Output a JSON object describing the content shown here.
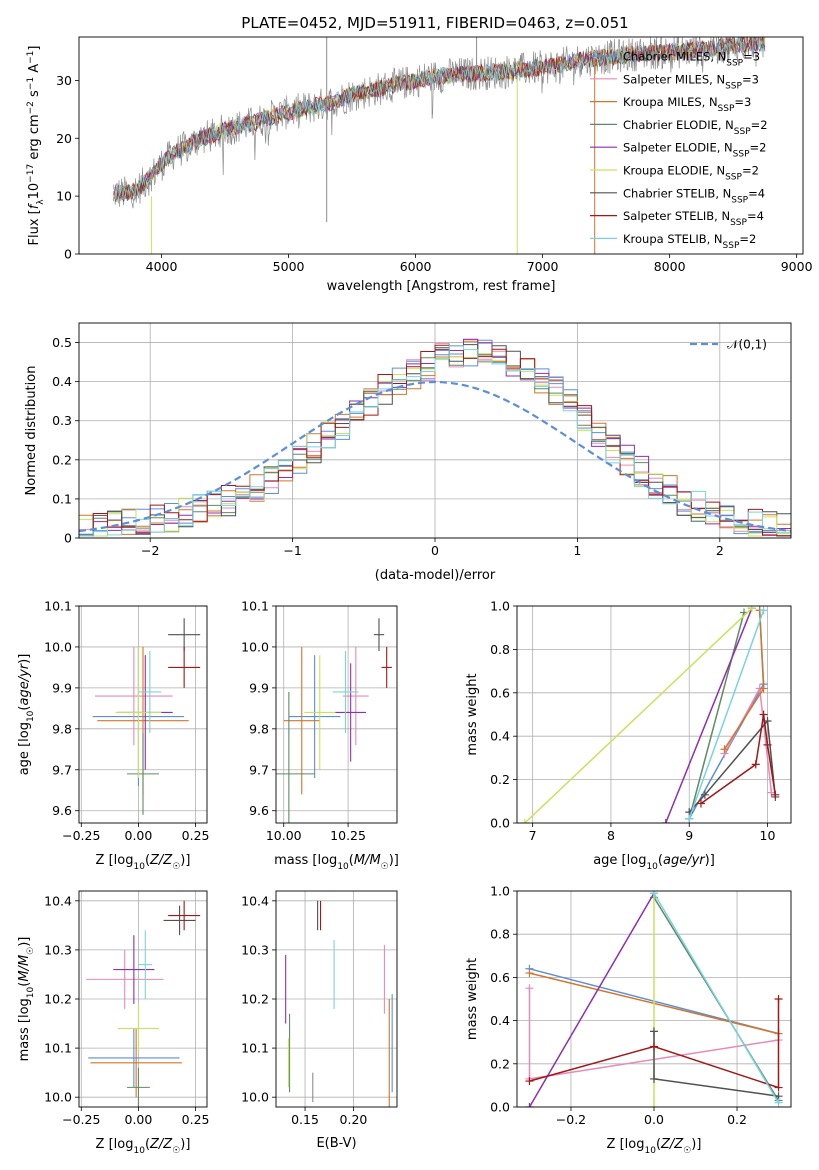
{
  "figure_title": "PLATE=0452, MJD=51911, FIBERID=0463, z=0.051",
  "colors": {
    "chabrier_miles": "#5b8fd9",
    "salpeter_miles": "#e68ab8",
    "kroupa_miles": "#d2762a",
    "chabrier_elodie": "#5f8a63",
    "salpeter_elodie": "#8e2fae",
    "kroupa_elodie": "#c8e35a",
    "chabrier_stelib": "#505050",
    "salpeter_stelib": "#a01818",
    "kroupa_stelib": "#79d3de",
    "model_gauss": "#5b8fd9",
    "data_gray": "#8c8c8c",
    "grid": "#b0b0b0"
  },
  "chart_data": [
    {
      "id": "spectrum",
      "type": "line",
      "xlabel": "wavelength [Angstrom, rest frame]",
      "ylabel": "Flux [f_λ10^-17 erg cm^-2 s^-1 A^-1]",
      "xlim": [
        3350,
        9050
      ],
      "ylim": [
        0,
        37.5
      ],
      "xticks": [
        4000,
        5000,
        6000,
        7000,
        8000,
        9000
      ],
      "yticks": [
        0,
        10,
        20,
        30
      ],
      "grid": false,
      "legend_position": "right",
      "continuum": {
        "x": [
          3620,
          3700,
          3800,
          3900,
          4000,
          4100,
          4200,
          4300,
          4400,
          4500,
          4700,
          4900,
          5100,
          5300,
          5500,
          5700,
          5900,
          6100,
          6300,
          6500,
          6700,
          6900,
          7100,
          7300,
          7500,
          7700,
          7900,
          8100,
          8300,
          8500,
          8700,
          8750
        ],
        "y": [
          10.5,
          10.5,
          11,
          13,
          15.5,
          17.5,
          18.5,
          20,
          20.5,
          21.5,
          22.5,
          24,
          25,
          26,
          27.5,
          28.5,
          29.5,
          30.5,
          31,
          31.2,
          31.5,
          32,
          32.5,
          33.5,
          34,
          34.5,
          34.8,
          35,
          35.5,
          36,
          36.5,
          36.5
        ]
      },
      "spikes": [
        {
          "x": 3920,
          "from": 0,
          "to": 10,
          "series": "Kroupa ELODIE, N_SSP=2"
        },
        {
          "x": 5300,
          "from": 5.5,
          "to": 37.5,
          "series": "data"
        },
        {
          "x": 6800,
          "from": 0,
          "to": 31,
          "series": "Kroupa ELODIE, N_SSP=2"
        },
        {
          "x": 7410,
          "from": 0,
          "to": 33.5,
          "series": "Kroupa MILES, N_SSP=3"
        },
        {
          "x": 6480,
          "from": 31,
          "to": 37.5,
          "series": "data"
        }
      ],
      "legend": [
        {
          "label": "Chabrier MILES, N",
          "sub": "SSP",
          "tail": "=3",
          "color": "#5b8fd9"
        },
        {
          "label": "Salpeter MILES, N",
          "sub": "SSP",
          "tail": "=3",
          "color": "#e68ab8"
        },
        {
          "label": "Kroupa MILES, N",
          "sub": "SSP",
          "tail": "=3",
          "color": "#d2762a"
        },
        {
          "label": "Chabrier ELODIE, N",
          "sub": "SSP",
          "tail": "=2",
          "color": "#5f8a63"
        },
        {
          "label": "Salpeter ELODIE, N",
          "sub": "SSP",
          "tail": "=2",
          "color": "#8e2fae"
        },
        {
          "label": "Kroupa ELODIE, N",
          "sub": "SSP",
          "tail": "=2",
          "color": "#c8e35a"
        },
        {
          "label": "Chabrier STELIB, N",
          "sub": "SSP",
          "tail": "=4",
          "color": "#505050"
        },
        {
          "label": "Salpeter STELIB, N",
          "sub": "SSP",
          "tail": "=4",
          "color": "#a01818"
        },
        {
          "label": "Kroupa STELIB, N",
          "sub": "SSP",
          "tail": "=2",
          "color": "#79d3de"
        }
      ]
    },
    {
      "id": "residuals",
      "type": "histogram",
      "xlabel": "(data-model)/error",
      "ylabel": "Normed distribution",
      "xlim": [
        -2.5,
        2.5
      ],
      "ylim": [
        0,
        0.55
      ],
      "xticks": [
        -2,
        -1,
        0,
        1,
        2
      ],
      "yticks": [
        0.0,
        0.1,
        0.2,
        0.3,
        0.4,
        0.5
      ],
      "grid": true,
      "bin_width": 0.1,
      "bin_start": -2.5,
      "base_heights": [
        0.02,
        0.025,
        0.03,
        0.04,
        0.045,
        0.05,
        0.055,
        0.065,
        0.075,
        0.085,
        0.095,
        0.11,
        0.13,
        0.15,
        0.17,
        0.2,
        0.23,
        0.26,
        0.29,
        0.32,
        0.35,
        0.38,
        0.4,
        0.42,
        0.44,
        0.46,
        0.47,
        0.48,
        0.48,
        0.46,
        0.45,
        0.43,
        0.41,
        0.38,
        0.34,
        0.31,
        0.27,
        0.23,
        0.2,
        0.17,
        0.14,
        0.12,
        0.095,
        0.08,
        0.065,
        0.055,
        0.045,
        0.035,
        0.03,
        0.025
      ],
      "legend": [
        {
          "label": "𝒩(0,1)",
          "color": "#5b8fd9",
          "dash": true
        }
      ],
      "legend_position": "top-right"
    },
    {
      "id": "age_vs_Z",
      "type": "errorbar",
      "xlabel": "Z [log10(Z/Z☉)]",
      "ylabel": "age [log10(age/yr)]",
      "xlim": [
        -0.26,
        0.3
      ],
      "ylim": [
        9.57,
        10.1
      ],
      "xticks": [
        -0.25,
        0.0,
        0.25
      ],
      "xtick_labels": [
        "−0.25",
        "0.00",
        "0.25"
      ],
      "yticks": [
        9.6,
        9.7,
        9.8,
        9.9,
        10.0,
        10.1
      ],
      "ytick_labels": [
        "9.6",
        "9.7",
        "9.8",
        "9.9",
        "10.0",
        "10.1"
      ],
      "grid": true,
      "points": [
        {
          "x": 0.0,
          "y": 9.83,
          "xerr": 0.2,
          "yerr": 0.17,
          "color": "#5b8fd9"
        },
        {
          "x": -0.02,
          "y": 9.88,
          "xerr": 0.17,
          "yerr": 0.12,
          "color": "#e68ab8"
        },
        {
          "x": 0.02,
          "y": 9.82,
          "xerr": 0.2,
          "yerr": 0.18,
          "color": "#d2762a"
        },
        {
          "x": 0.02,
          "y": 9.69,
          "xerr": 0.07,
          "yerr": 0.1,
          "color": "#5f8a63"
        },
        {
          "x": 0.03,
          "y": 9.84,
          "xerr": 0.12,
          "yerr": 0.14,
          "color": "#8e2fae"
        },
        {
          "x": 0.0,
          "y": 9.84,
          "xerr": 0.1,
          "yerr": 0.16,
          "color": "#c8e35a"
        },
        {
          "x": 0.2,
          "y": 10.03,
          "xerr": 0.07,
          "yerr": 0.04,
          "color": "#505050"
        },
        {
          "x": 0.2,
          "y": 9.95,
          "xerr": 0.07,
          "yerr": 0.05,
          "color": "#a01818"
        },
        {
          "x": 0.05,
          "y": 9.89,
          "xerr": 0.05,
          "yerr": 0.1,
          "color": "#79d3de"
        }
      ]
    },
    {
      "id": "age_vs_mass",
      "type": "errorbar",
      "xlabel": "mass [log10(M/M☉)]",
      "ylabel": "",
      "xlim": [
        9.97,
        10.44
      ],
      "ylim": [
        9.57,
        10.1
      ],
      "xticks": [
        10.0,
        10.25
      ],
      "xtick_labels": [
        "10.00",
        "10.25"
      ],
      "yticks": [
        9.6,
        9.7,
        9.8,
        9.9,
        10.0,
        10.1
      ],
      "ytick_labels": [
        "9.6",
        "9.7",
        "9.8",
        "9.9",
        "10.0",
        "10.1"
      ],
      "grid": true,
      "points": [
        {
          "x": 10.12,
          "y": 9.83,
          "xerr": 0.1,
          "yerr": 0.15,
          "color": "#5b8fd9"
        },
        {
          "x": 10.28,
          "y": 9.88,
          "xerr": 0.05,
          "yerr": 0.12,
          "color": "#e68ab8"
        },
        {
          "x": 10.07,
          "y": 9.82,
          "xerr": 0.07,
          "yerr": 0.18,
          "color": "#d2762a"
        },
        {
          "x": 10.02,
          "y": 9.69,
          "xerr": 0.1,
          "yerr": 0.2,
          "color": "#5f8a63"
        },
        {
          "x": 10.26,
          "y": 9.84,
          "xerr": 0.06,
          "yerr": 0.12,
          "color": "#8e2fae"
        },
        {
          "x": 10.14,
          "y": 9.84,
          "xerr": 0.06,
          "yerr": 0.14,
          "color": "#c8e35a"
        },
        {
          "x": 10.37,
          "y": 10.03,
          "xerr": 0.02,
          "yerr": 0.04,
          "color": "#505050"
        },
        {
          "x": 10.4,
          "y": 9.95,
          "xerr": 0.02,
          "yerr": 0.05,
          "color": "#a01818"
        },
        {
          "x": 10.24,
          "y": 9.89,
          "xerr": 0.05,
          "yerr": 0.1,
          "color": "#79d3de"
        }
      ]
    },
    {
      "id": "weight_vs_age",
      "type": "line",
      "xlabel": "age [log10(age/yr)]",
      "ylabel": "mass weight",
      "xlim": [
        6.8,
        10.3
      ],
      "ylim": [
        0.0,
        1.0
      ],
      "xticks": [
        7,
        8,
        9,
        10
      ],
      "xtick_labels": [
        "7",
        "8",
        "9",
        "10"
      ],
      "yticks": [
        0.0,
        0.2,
        0.4,
        0.6,
        0.8,
        1.0
      ],
      "ytick_labels": [
        "0.0",
        "0.2",
        "0.4",
        "0.6",
        "0.8",
        "1.0"
      ],
      "grid": true,
      "series": [
        {
          "color": "#5b8fd9",
          "x": [
            9.0,
            9.95,
            9.9
          ],
          "y": [
            0.02,
            0.64,
            0.98
          ]
        },
        {
          "color": "#e68ab8",
          "x": [
            9.45,
            9.9,
            10.05
          ],
          "y": [
            0.32,
            0.62,
            0.14
          ]
        },
        {
          "color": "#d2762a",
          "x": [
            9.45,
            9.95,
            9.9
          ],
          "y": [
            0.34,
            0.62,
            0.98
          ]
        },
        {
          "color": "#5f8a63",
          "x": [
            9.0,
            9.7
          ],
          "y": [
            0.02,
            0.97
          ]
        },
        {
          "color": "#8e2fae",
          "x": [
            8.7,
            9.8
          ],
          "y": [
            0.0,
            0.99
          ]
        },
        {
          "color": "#c8e35a",
          "x": [
            6.9,
            9.8
          ],
          "y": [
            0.0,
            0.99
          ]
        },
        {
          "color": "#505050",
          "x": [
            9.0,
            9.2,
            10.0,
            10.1
          ],
          "y": [
            0.05,
            0.13,
            0.47,
            0.12
          ]
        },
        {
          "color": "#a01818",
          "x": [
            9.15,
            9.85,
            9.95,
            10.0,
            10.1
          ],
          "y": [
            0.09,
            0.27,
            0.5,
            0.36,
            0.13
          ]
        },
        {
          "color": "#79d3de",
          "x": [
            9.0,
            9.95
          ],
          "y": [
            0.02,
            0.98
          ]
        }
      ]
    },
    {
      "id": "mass_vs_Z",
      "type": "errorbar",
      "xlabel": "Z [log10(Z/Z☉)]",
      "ylabel": "mass [log10(M/M☉)]",
      "xlim": [
        -0.26,
        0.3
      ],
      "ylim": [
        9.98,
        10.42
      ],
      "xticks": [
        -0.25,
        0.0,
        0.25
      ],
      "xtick_labels": [
        "−0.25",
        "0.00",
        "0.25"
      ],
      "yticks": [
        10.0,
        10.1,
        10.2,
        10.3,
        10.4
      ],
      "ytick_labels": [
        "10.0",
        "10.1",
        "10.2",
        "10.3",
        "10.4"
      ],
      "grid": true,
      "points": [
        {
          "x": -0.02,
          "y": 10.08,
          "xerr": 0.2,
          "yerr": 0.06,
          "color": "#5b8fd9"
        },
        {
          "x": -0.06,
          "y": 10.24,
          "xerr": 0.17,
          "yerr": 0.06,
          "color": "#e68ab8"
        },
        {
          "x": -0.01,
          "y": 10.07,
          "xerr": 0.2,
          "yerr": 0.07,
          "color": "#d2762a"
        },
        {
          "x": 0.0,
          "y": 10.02,
          "xerr": 0.05,
          "yerr": 0.04,
          "color": "#5f8a63"
        },
        {
          "x": -0.02,
          "y": 10.26,
          "xerr": 0.09,
          "yerr": 0.07,
          "color": "#8e2fae"
        },
        {
          "x": 0.0,
          "y": 10.14,
          "xerr": 0.09,
          "yerr": 0.05,
          "color": "#c8e35a"
        },
        {
          "x": 0.18,
          "y": 10.36,
          "xerr": 0.07,
          "yerr": 0.03,
          "color": "#505050"
        },
        {
          "x": 0.2,
          "y": 10.37,
          "xerr": 0.07,
          "yerr": 0.03,
          "color": "#a01818"
        },
        {
          "x": 0.03,
          "y": 10.27,
          "xerr": 0.03,
          "yerr": 0.07,
          "color": "#79d3de"
        }
      ]
    },
    {
      "id": "mass_vs_ebv",
      "type": "errorbar",
      "xlabel": "E(B-V)",
      "ylabel": "",
      "xlim": [
        0.12,
        0.245
      ],
      "ylim": [
        9.98,
        10.42
      ],
      "xticks": [
        0.15,
        0.2
      ],
      "xtick_labels": [
        "0.15",
        "0.20"
      ],
      "yticks": [
        10.0,
        10.1,
        10.2,
        10.3,
        10.4
      ],
      "ytick_labels": [
        "10.0",
        "10.1",
        "10.2",
        "10.3",
        "10.4"
      ],
      "grid": true,
      "points": [
        {
          "x": 0.24,
          "y": 10.11,
          "xerr": 0.0,
          "yerr": 0.1,
          "color": "#5b8fd9"
        },
        {
          "x": 0.232,
          "y": 10.24,
          "xerr": 0.0,
          "yerr": 0.07,
          "color": "#e68ab8"
        },
        {
          "x": 0.237,
          "y": 10.09,
          "xerr": 0.0,
          "yerr": 0.11,
          "color": "#d2762a"
        },
        {
          "x": 0.134,
          "y": 10.09,
          "xerr": 0.0,
          "yerr": 0.08,
          "color": "#5f8a63"
        },
        {
          "x": 0.13,
          "y": 10.22,
          "xerr": 0.0,
          "yerr": 0.07,
          "color": "#8e2fae"
        },
        {
          "x": 0.133,
          "y": 10.07,
          "xerr": 0.0,
          "yerr": 0.05,
          "color": "#c8e35a"
        },
        {
          "x": 0.163,
          "y": 10.37,
          "xerr": 0.0,
          "yerr": 0.03,
          "color": "#505050"
        },
        {
          "x": 0.166,
          "y": 10.37,
          "xerr": 0.0,
          "yerr": 0.03,
          "color": "#a01818"
        },
        {
          "x": 0.18,
          "y": 10.25,
          "xerr": 0.0,
          "yerr": 0.07,
          "color": "#79d3de"
        },
        {
          "x": 0.158,
          "y": 10.02,
          "xerr": 0.0,
          "yerr": 0.03,
          "color": "#8c8c8c"
        }
      ]
    },
    {
      "id": "weight_vs_Z",
      "type": "line",
      "xlabel": "Z [log10(Z/Z☉)]",
      "ylabel": "mass weight",
      "xlim": [
        -0.33,
        0.33
      ],
      "ylim": [
        0.0,
        1.0
      ],
      "xticks": [
        -0.2,
        0.0,
        0.2
      ],
      "xtick_labels": [
        "−0.2",
        "0.0",
        "0.2"
      ],
      "yticks": [
        0.0,
        0.2,
        0.4,
        0.6,
        0.8,
        1.0
      ],
      "ytick_labels": [
        "0.0",
        "0.2",
        "0.4",
        "0.6",
        "0.8",
        "1.0"
      ],
      "grid": true,
      "series": [
        {
          "color": "#5b8fd9",
          "x": [
            -0.3,
            0.3
          ],
          "y": [
            0.64,
            0.34
          ]
        },
        {
          "color": "#d2762a",
          "x": [
            -0.3,
            0.3
          ],
          "y": [
            0.62,
            0.34
          ]
        },
        {
          "color": "#e68ab8",
          "x": [
            -0.3,
            -0.3,
            0.3
          ],
          "y": [
            0.55,
            0.13,
            0.31
          ]
        },
        {
          "color": "#5f8a63",
          "x": [
            0.0,
            0.3
          ],
          "y": [
            0.97,
            0.03
          ]
        },
        {
          "color": "#8e2fae",
          "x": [
            -0.3,
            0.0
          ],
          "y": [
            0.0,
            0.99
          ]
        },
        {
          "color": "#c8e35a",
          "x": [
            0.0,
            0.0
          ],
          "y": [
            0.0,
            0.99
          ]
        },
        {
          "color": "#505050",
          "x": [
            0.0,
            0.0,
            0.3
          ],
          "y": [
            0.35,
            0.13,
            0.05
          ]
        },
        {
          "color": "#a01818",
          "x": [
            -0.3,
            0.0,
            0.3,
            0.3
          ],
          "y": [
            0.12,
            0.28,
            0.09,
            0.5
          ]
        },
        {
          "color": "#79d3de",
          "x": [
            0.0,
            0.3
          ],
          "y": [
            0.99,
            0.02
          ]
        }
      ]
    }
  ]
}
